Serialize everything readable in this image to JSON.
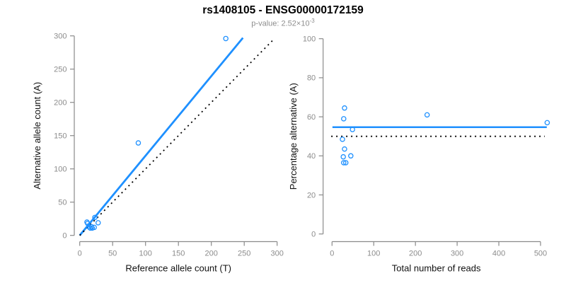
{
  "header": {
    "title": "rs1408105 - ENSG00000172159",
    "subtitle_prefix": "p-value: 2.52×10",
    "subtitle_exponent": "-3"
  },
  "colors": {
    "point_blue": "#1E90FF",
    "fit_line_blue": "#1E90FF",
    "reference_line_black": "#000000",
    "axis_line": "#8a8a8a",
    "tick_label": "#8c8c8c",
    "axis_title": "#111111",
    "subtitle_gray": "#8e8e8e"
  },
  "chart_data": [
    {
      "id": "allele-count-scatter",
      "type": "scatter",
      "title": "",
      "xlabel": "Reference allele count (T)",
      "ylabel": "Alternative allele count (A)",
      "xlim": [
        0,
        300
      ],
      "ylim": [
        0,
        300
      ],
      "xticks": [
        0,
        50,
        100,
        150,
        200,
        250,
        300
      ],
      "yticks": [
        0,
        50,
        100,
        150,
        200,
        250,
        300
      ],
      "grid": false,
      "points": [
        [
          11,
          20
        ],
        [
          12,
          18
        ],
        [
          23,
          27
        ],
        [
          14,
          13
        ],
        [
          18,
          13
        ],
        [
          16,
          11
        ],
        [
          28,
          19
        ],
        [
          19,
          11
        ],
        [
          22,
          12
        ],
        [
          89,
          139
        ],
        [
          222,
          296
        ]
      ],
      "lines": [
        {
          "name": "fit-line",
          "x1": 0,
          "y1": 0,
          "x2": 248,
          "y2": 297,
          "style": "solid",
          "color": "#1E90FF",
          "width": 2.8
        },
        {
          "name": "identity-line",
          "x1": 0,
          "y1": 0,
          "x2": 294,
          "y2": 294,
          "style": "dotted",
          "color": "#000000",
          "width": 1.8
        }
      ]
    },
    {
      "id": "percentage-scatter",
      "type": "scatter",
      "title": "",
      "xlabel": "Total number of reads",
      "ylabel": "Percentage alternative (A)",
      "xlim": [
        0,
        500
      ],
      "ylim": [
        0,
        100
      ],
      "xticks": [
        0,
        100,
        200,
        300,
        400,
        500
      ],
      "yticks": [
        0,
        20,
        40,
        60,
        80,
        100
      ],
      "grid": false,
      "points": [
        [
          30,
          64.5
        ],
        [
          28,
          59
        ],
        [
          49,
          53.5
        ],
        [
          25,
          48.5
        ],
        [
          30,
          43.5
        ],
        [
          27,
          39.5
        ],
        [
          45,
          40
        ],
        [
          28,
          36.5
        ],
        [
          33,
          36.5
        ],
        [
          228,
          61
        ],
        [
          516,
          57
        ]
      ],
      "lines": [
        {
          "name": "mean-percentage-line",
          "x1": 1,
          "y1": 54.7,
          "x2": 515,
          "y2": 54.7,
          "style": "solid",
          "color": "#1E90FF",
          "width": 2.5
        },
        {
          "name": "fifty-percent-line",
          "x1": -2,
          "y1": 50,
          "x2": 510,
          "y2": 50,
          "style": "dotted",
          "color": "#000000",
          "width": 1.8
        }
      ]
    }
  ]
}
